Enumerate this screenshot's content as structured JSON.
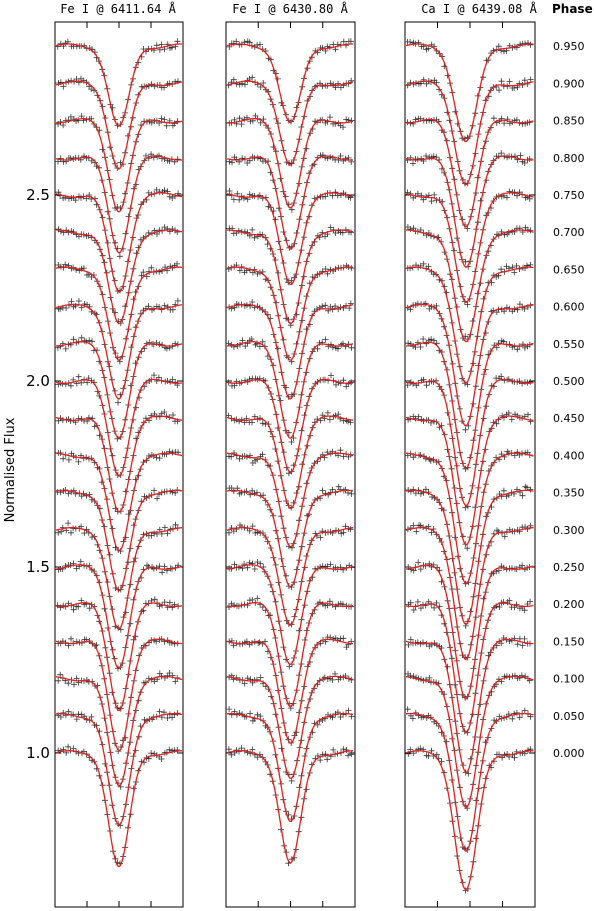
{
  "chart_data": {
    "type": "line",
    "ylabel": "Normalised Flux",
    "ylim": [
      0.6,
      3.0
    ],
    "y_ticks": [
      "1.0",
      "1.5",
      "2.0",
      "2.5"
    ],
    "y_tick_values": [
      1.0,
      1.5,
      2.0,
      2.5
    ],
    "phase_header": "Phase",
    "phases": [
      "0.000",
      "0.050",
      "0.100",
      "0.150",
      "0.200",
      "0.250",
      "0.300",
      "0.350",
      "0.400",
      "0.450",
      "0.500",
      "0.550",
      "0.600",
      "0.650",
      "0.700",
      "0.750",
      "0.800",
      "0.850",
      "0.900",
      "0.950"
    ],
    "offset_per_phase": 0.1,
    "series_style": {
      "observed": "black plus markers",
      "model": "red line"
    },
    "colors": {
      "model": "#e02020",
      "observed": "#333333",
      "frame": "#000000"
    },
    "panels": [
      {
        "title": "Fe I @ 6411.64 Å",
        "line_depths": [
          0.31,
          0.3,
          0.29,
          0.29,
          0.28,
          0.27,
          0.27,
          0.27,
          0.26,
          0.25,
          0.25,
          0.25,
          0.25,
          0.25,
          0.25,
          0.26,
          0.25,
          0.24,
          0.23,
          0.22
        ]
      },
      {
        "title": "Fe I @ 6430.80 Å",
        "line_depths": [
          0.3,
          0.29,
          0.27,
          0.27,
          0.27,
          0.26,
          0.26,
          0.26,
          0.25,
          0.24,
          0.24,
          0.25,
          0.25,
          0.25,
          0.25,
          0.24,
          0.24,
          0.23,
          0.22,
          0.21
        ]
      },
      {
        "title": "Ca I @ 6439.08 Å",
        "line_depths": [
          0.37,
          0.37,
          0.35,
          0.35,
          0.34,
          0.35,
          0.35,
          0.36,
          0.35,
          0.34,
          0.33,
          0.33,
          0.32,
          0.31,
          0.3,
          0.29,
          0.29,
          0.28,
          0.27,
          0.26
        ]
      }
    ]
  }
}
